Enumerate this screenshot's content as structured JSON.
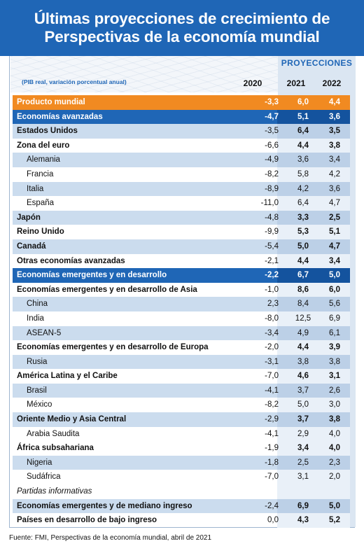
{
  "title_line1": "Últimas proyecciones de crecimiento de",
  "title_line2": "Perspectivas de la economía mundial",
  "projections_label": "PROYECCIONES",
  "subheading": "(PIB real, variación porcentual anual)",
  "years": [
    "2020",
    "2021",
    "2022"
  ],
  "rows": [
    {
      "name": "Producto mundial",
      "v2020": "-3,3",
      "v2021": "6,0",
      "v2022": "4,4"
    },
    {
      "name": "Economías avanzadas",
      "v2020": "-4,7",
      "v2021": "5,1",
      "v2022": "3,6"
    },
    {
      "name": "Estados Unidos",
      "v2020": "-3,5",
      "v2021": "6,4",
      "v2022": "3,5"
    },
    {
      "name": "Zona del euro",
      "v2020": "-6,6",
      "v2021": "4,4",
      "v2022": "3,8"
    },
    {
      "name": "Alemania",
      "v2020": "-4,9",
      "v2021": "3,6",
      "v2022": "3,4"
    },
    {
      "name": "Francia",
      "v2020": "-8,2",
      "v2021": "5,8",
      "v2022": "4,2"
    },
    {
      "name": "Italia",
      "v2020": "-8,9",
      "v2021": "4,2",
      "v2022": "3,6"
    },
    {
      "name": "España",
      "v2020": "-11,0",
      "v2021": "6,4",
      "v2022": "4,7"
    },
    {
      "name": "Japón",
      "v2020": "-4,8",
      "v2021": "3,3",
      "v2022": "2,5"
    },
    {
      "name": "Reino Unido",
      "v2020": "-9,9",
      "v2021": "5,3",
      "v2022": "5,1"
    },
    {
      "name": "Canadá",
      "v2020": "-5,4",
      "v2021": "5,0",
      "v2022": "4,7"
    },
    {
      "name": "Otras economías avanzadas",
      "v2020": "-2,1",
      "v2021": "4,4",
      "v2022": "3,4"
    },
    {
      "name": "Economías emergentes y en desarrollo",
      "v2020": "-2,2",
      "v2021": "6,7",
      "v2022": "5,0"
    },
    {
      "name": "Economías emergentes y en desarrollo de Asia",
      "v2020": "-1,0",
      "v2021": "8,6",
      "v2022": "6,0"
    },
    {
      "name": "China",
      "v2020": "2,3",
      "v2021": "8,4",
      "v2022": "5,6"
    },
    {
      "name": "India",
      "v2020": "-8,0",
      "v2021": "12,5",
      "v2022": "6,9"
    },
    {
      "name": "ASEAN-5",
      "v2020": "-3,4",
      "v2021": "4,9",
      "v2022": "6,1"
    },
    {
      "name": "Economías emergentes y en desarrollo de Europa",
      "v2020": "-2,0",
      "v2021": "4,4",
      "v2022": "3,9"
    },
    {
      "name": "Rusia",
      "v2020": "-3,1",
      "v2021": "3,8",
      "v2022": "3,8"
    },
    {
      "name": "América Latina y el Caribe",
      "v2020": "-7,0",
      "v2021": "4,6",
      "v2022": "3,1"
    },
    {
      "name": "Brasil",
      "v2020": "-4,1",
      "v2021": "3,7",
      "v2022": "2,6"
    },
    {
      "name": "México",
      "v2020": "-8,2",
      "v2021": "5,0",
      "v2022": "3,0"
    },
    {
      "name": "Oriente Medio y Asia Central",
      "v2020": "-2,9",
      "v2021": "3,7",
      "v2022": "3,8"
    },
    {
      "name": "Arabia Saudita",
      "v2020": "-4,1",
      "v2021": "2,9",
      "v2022": "4,0"
    },
    {
      "name": "África subsahariana",
      "v2020": "-1,9",
      "v2021": "3,4",
      "v2022": "4,0"
    },
    {
      "name": "Nigeria",
      "v2020": "-1,8",
      "v2021": "2,5",
      "v2022": "2,3"
    },
    {
      "name": "Sudáfrica",
      "v2020": "-7,0",
      "v2021": "3,1",
      "v2022": "2,0"
    },
    {
      "name": "Partidas informativas",
      "v2020": "",
      "v2021": "",
      "v2022": ""
    },
    {
      "name": "Economías emergentes y de mediano ingreso",
      "v2020": "-2,4",
      "v2021": "6,9",
      "v2022": "5,0"
    },
    {
      "name": "Países en desarrollo de bajo ingreso",
      "v2020": "0,0",
      "v2021": "4,3",
      "v2022": "5,2"
    }
  ],
  "source": "Fuente: FMI, Perspectivas de la economía mundial, abril de 2021",
  "colors": {
    "header_blue": "#1f66b6",
    "orange": "#f18a21",
    "light_blue": "#cbdcee"
  }
}
